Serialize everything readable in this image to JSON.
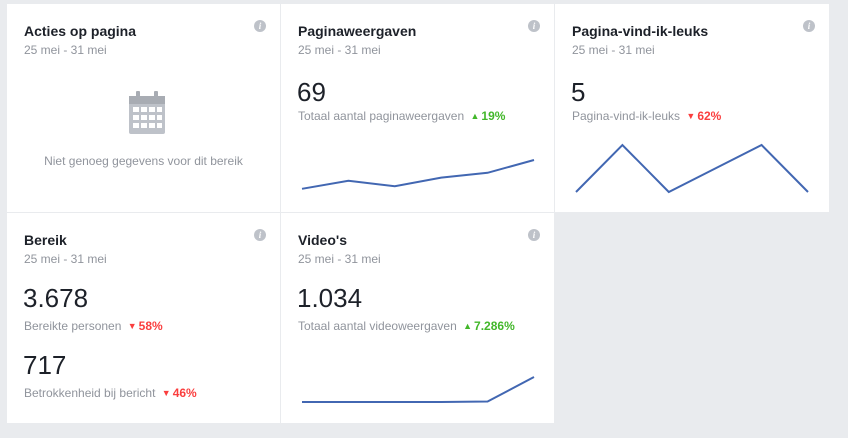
{
  "colors": {
    "background": "#e9ebee",
    "card": "#ffffff",
    "sparkline": "#4267b2",
    "up": "#42b72a",
    "down": "#fa3e3e"
  },
  "cards": {
    "acties": {
      "title": "Acties op pagina",
      "date": "25 mei - 31 mei",
      "info": "i",
      "empty_icon": "calendar-icon",
      "empty_message": "Niet genoeg gegevens voor dit bereik"
    },
    "paginaweergaven": {
      "title": "Paginaweergaven",
      "date": "25 mei - 31 mei",
      "info": "i",
      "value": "69",
      "label": "Totaal aantal paginaweergaven",
      "delta_arrow": "▲",
      "delta": "19%",
      "trend": [
        0.1,
        0.35,
        0.18,
        0.45,
        0.6,
        1.0
      ]
    },
    "vind_ik_leuks": {
      "title": "Pagina-vind-ik-leuks",
      "date": "25 mei - 31 mei",
      "info": "i",
      "value": "5",
      "label": "Pagina-vind-ik-leuks",
      "delta_arrow": "▼",
      "delta": "62%",
      "trend": [
        0,
        1,
        0,
        0.5,
        1,
        0
      ]
    },
    "bereik": {
      "title": "Bereik",
      "date": "25 mei - 31 mei",
      "info": "i",
      "value": "3.678",
      "label": "Bereikte personen",
      "delta_arrow": "▼",
      "delta": "58%",
      "value2": "717",
      "label2": "Betrokkenheid bij bericht",
      "delta2_arrow": "▼",
      "delta2": "46%"
    },
    "videos": {
      "title": "Video's",
      "date": "25 mei - 31 mei",
      "info": "i",
      "value": "1.034",
      "label": "Totaal aantal videoweergaven",
      "delta_arrow": "▲",
      "delta": "7.286%",
      "trend": [
        0,
        0,
        0,
        0,
        0.02,
        1.0
      ]
    }
  }
}
